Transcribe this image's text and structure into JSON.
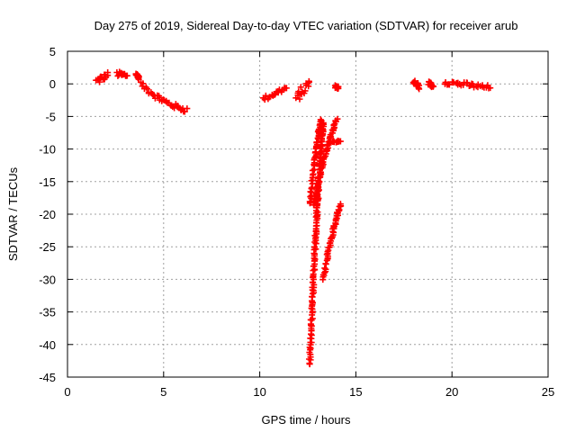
{
  "chart_data": {
    "type": "scatter",
    "title": "Day 275 of 2019, Sidereal Day-to-day VTEC variation (SDTVAR) for receiver arub",
    "xlabel": "GPS time / hours",
    "ylabel": "SDTVAR / TECUs",
    "xlim": [
      0,
      25
    ],
    "ylim": [
      -45,
      5
    ],
    "xticks": [
      0,
      5,
      10,
      15,
      20,
      25
    ],
    "yticks": [
      5,
      0,
      -5,
      -10,
      -15,
      -20,
      -25,
      -30,
      -35,
      -40,
      -45
    ],
    "grid": true,
    "marker": "+",
    "color": "#ff0000",
    "segments": [
      {
        "x": [
          1.5,
          2.1
        ],
        "y": [
          0.4,
          1.4
        ],
        "spread": 1.0
      },
      {
        "x": [
          2.6,
          3.1
        ],
        "y": [
          1.5,
          1.3
        ],
        "spread": 0.8
      },
      {
        "x": [
          3.6,
          3.7
        ],
        "y": [
          1.5,
          0.9
        ],
        "spread": 0.5
      },
      {
        "x": [
          3.8,
          6.2
        ],
        "y": [
          0.0,
          -4.0
        ],
        "spread": 0.8,
        "curve": 0.6
      },
      {
        "x": [
          10.2,
          11.4
        ],
        "y": [
          -2.3,
          -0.6
        ],
        "spread": 0.7
      },
      {
        "x": [
          11.9,
          12.6
        ],
        "y": [
          -2.3,
          0.3
        ],
        "spread": 1.6
      },
      {
        "x": [
          13.9,
          14.1
        ],
        "y": [
          -0.4,
          -0.6
        ],
        "spread": 0.4
      },
      {
        "x": [
          12.6,
          13.3
        ],
        "y": [
          -43.0,
          -6.0
        ],
        "spread": 0.4,
        "curve": 0.35
      },
      {
        "x": [
          12.6,
          13.2
        ],
        "y": [
          -18.5,
          -5.5
        ],
        "spread": 0.4,
        "curve": 0.3
      },
      {
        "x": [
          12.8,
          14.0
        ],
        "y": [
          -18.5,
          -5.5
        ],
        "spread": 0.4,
        "curve": 0.3
      },
      {
        "x": [
          13.6,
          14.2
        ],
        "y": [
          -9.0,
          -8.7
        ],
        "spread": 0.3
      },
      {
        "x": [
          13.3,
          14.2
        ],
        "y": [
          -30.0,
          -18.5
        ],
        "spread": 0.4,
        "curve": 0.3
      },
      {
        "x": [
          18.0,
          18.3
        ],
        "y": [
          0.2,
          -0.4
        ],
        "spread": 1.0
      },
      {
        "x": [
          18.8,
          19.0
        ],
        "y": [
          0.1,
          -0.3
        ],
        "spread": 0.6
      },
      {
        "x": [
          19.6,
          22.0
        ],
        "y": [
          0.3,
          -0.6
        ],
        "spread": 0.7
      }
    ]
  }
}
